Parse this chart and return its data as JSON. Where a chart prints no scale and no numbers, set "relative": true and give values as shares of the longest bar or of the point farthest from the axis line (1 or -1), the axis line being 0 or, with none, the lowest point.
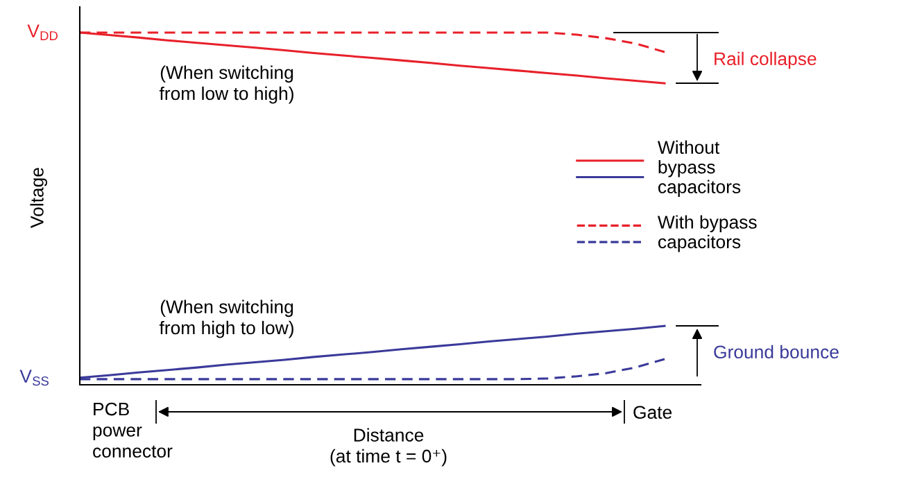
{
  "chart_data": {
    "type": "line",
    "relative": true,
    "grid": false,
    "legend": "right",
    "marker": "none",
    "ylabel": "Voltage",
    "xlabel": "Distance\n(at time t = 0⁺)",
    "categories": [
      null,
      null,
      null,
      null,
      null,
      null,
      null,
      null,
      null,
      null,
      null,
      null,
      null,
      null,
      null,
      null,
      null,
      null,
      null,
      null,
      null
    ],
    "series": [
      {
        "name": "Without\nbypass\ncapacitors",
        "color": "#e8202a",
        "line_style": "solid",
        "values": [
          1,
          0.993,
          0.986,
          0.978,
          0.971,
          0.964,
          0.957,
          0.95,
          0.942,
          0.935,
          0.928,
          0.921,
          0.914,
          0.906,
          0.899,
          0.892,
          0.885,
          0.878,
          0.87,
          0.863,
          0.856
        ]
      },
      {
        "color": "#3a3a9a",
        "line_style": "solid",
        "values": [
          0.02,
          0.027,
          0.035,
          0.042,
          0.049,
          0.057,
          0.064,
          0.071,
          0.079,
          0.086,
          0.093,
          0.101,
          0.108,
          0.115,
          0.123,
          0.13,
          0.137,
          0.145,
          0.152,
          0.159,
          0.167
        ]
      },
      {
        "name": "With bypass\ncapacitors",
        "color": "#e8202a",
        "line_style": "dashed",
        "values": [
          1,
          1,
          1,
          1,
          1,
          1,
          1,
          1,
          1,
          1,
          1,
          1,
          1,
          1,
          1,
          1,
          1,
          0.994,
          0.984,
          0.969,
          0.945
        ]
      },
      {
        "color": "#3a3a9a",
        "line_style": "dashed",
        "values": [
          0.016,
          0.016,
          0.016,
          0.016,
          0.016,
          0.016,
          0.016,
          0.016,
          0.016,
          0.016,
          0.016,
          0.016,
          0.016,
          0.016,
          0.016,
          0.016,
          0.018,
          0.024,
          0.033,
          0.049,
          0.073
        ]
      }
    ],
    "annotations": [
      "V$_{DD}$",
      "V$_{SS}$",
      "(When switching\nfrom low to high)",
      "(When switching\nfrom high to low)",
      "Rail collapse",
      "Ground bounce",
      "PCB\npower\nconnector",
      "Gate"
    ]
  }
}
